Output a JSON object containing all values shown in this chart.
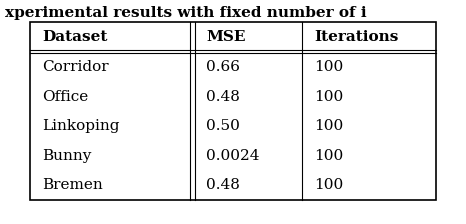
{
  "title_partial": "xperimental results with fixed number of i",
  "columns": [
    "Dataset",
    "MSE",
    "Iterations"
  ],
  "rows": [
    [
      "Corridor",
      "0.66",
      "100"
    ],
    [
      "Office",
      "0.48",
      "100"
    ],
    [
      "Linkoping",
      "0.50",
      "100"
    ],
    [
      "Bunny",
      "0.0024",
      "100"
    ],
    [
      "Bremen",
      "0.48",
      "100"
    ]
  ],
  "background_color": "#ffffff",
  "text_color": "#000000",
  "line_color": "#000000",
  "fig_width": 4.66,
  "fig_height": 2.24,
  "dpi": 100,
  "header_fontsize": 11,
  "cell_fontsize": 11,
  "title_fontsize": 11
}
